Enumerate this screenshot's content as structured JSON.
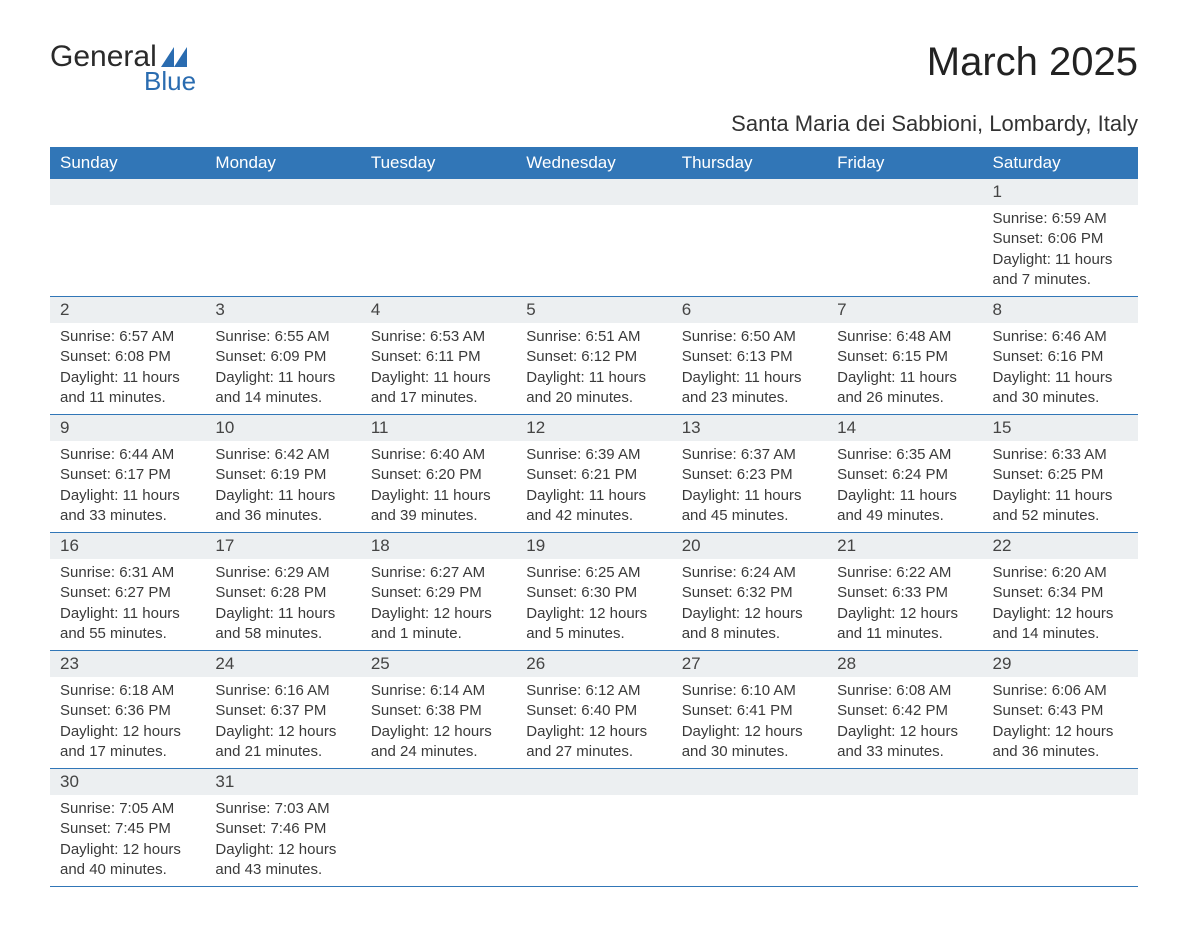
{
  "logo": {
    "word1": "General",
    "word2": "Blue",
    "text_color": "#2a2a2a",
    "accent_color": "#2a6cb0"
  },
  "title": "March 2025",
  "location": "Santa Maria dei Sabbioni, Lombardy, Italy",
  "colors": {
    "header_bg": "#3176b7",
    "header_text": "#ffffff",
    "daynum_bg": "#eceff1",
    "body_text": "#3a3a3a",
    "row_border": "#3176b7",
    "page_bg": "#ffffff"
  },
  "typography": {
    "title_fontsize": 40,
    "location_fontsize": 22,
    "header_fontsize": 17,
    "daynum_fontsize": 17,
    "body_fontsize": 15
  },
  "day_headers": [
    "Sunday",
    "Monday",
    "Tuesday",
    "Wednesday",
    "Thursday",
    "Friday",
    "Saturday"
  ],
  "weeks": [
    [
      {
        "empty": true
      },
      {
        "empty": true
      },
      {
        "empty": true
      },
      {
        "empty": true
      },
      {
        "empty": true
      },
      {
        "empty": true
      },
      {
        "day": "1",
        "sunrise": "Sunrise: 6:59 AM",
        "sunset": "Sunset: 6:06 PM",
        "daylight1": "Daylight: 11 hours",
        "daylight2": "and 7 minutes."
      }
    ],
    [
      {
        "day": "2",
        "sunrise": "Sunrise: 6:57 AM",
        "sunset": "Sunset: 6:08 PM",
        "daylight1": "Daylight: 11 hours",
        "daylight2": "and 11 minutes."
      },
      {
        "day": "3",
        "sunrise": "Sunrise: 6:55 AM",
        "sunset": "Sunset: 6:09 PM",
        "daylight1": "Daylight: 11 hours",
        "daylight2": "and 14 minutes."
      },
      {
        "day": "4",
        "sunrise": "Sunrise: 6:53 AM",
        "sunset": "Sunset: 6:11 PM",
        "daylight1": "Daylight: 11 hours",
        "daylight2": "and 17 minutes."
      },
      {
        "day": "5",
        "sunrise": "Sunrise: 6:51 AM",
        "sunset": "Sunset: 6:12 PM",
        "daylight1": "Daylight: 11 hours",
        "daylight2": "and 20 minutes."
      },
      {
        "day": "6",
        "sunrise": "Sunrise: 6:50 AM",
        "sunset": "Sunset: 6:13 PM",
        "daylight1": "Daylight: 11 hours",
        "daylight2": "and 23 minutes."
      },
      {
        "day": "7",
        "sunrise": "Sunrise: 6:48 AM",
        "sunset": "Sunset: 6:15 PM",
        "daylight1": "Daylight: 11 hours",
        "daylight2": "and 26 minutes."
      },
      {
        "day": "8",
        "sunrise": "Sunrise: 6:46 AM",
        "sunset": "Sunset: 6:16 PM",
        "daylight1": "Daylight: 11 hours",
        "daylight2": "and 30 minutes."
      }
    ],
    [
      {
        "day": "9",
        "sunrise": "Sunrise: 6:44 AM",
        "sunset": "Sunset: 6:17 PM",
        "daylight1": "Daylight: 11 hours",
        "daylight2": "and 33 minutes."
      },
      {
        "day": "10",
        "sunrise": "Sunrise: 6:42 AM",
        "sunset": "Sunset: 6:19 PM",
        "daylight1": "Daylight: 11 hours",
        "daylight2": "and 36 minutes."
      },
      {
        "day": "11",
        "sunrise": "Sunrise: 6:40 AM",
        "sunset": "Sunset: 6:20 PM",
        "daylight1": "Daylight: 11 hours",
        "daylight2": "and 39 minutes."
      },
      {
        "day": "12",
        "sunrise": "Sunrise: 6:39 AM",
        "sunset": "Sunset: 6:21 PM",
        "daylight1": "Daylight: 11 hours",
        "daylight2": "and 42 minutes."
      },
      {
        "day": "13",
        "sunrise": "Sunrise: 6:37 AM",
        "sunset": "Sunset: 6:23 PM",
        "daylight1": "Daylight: 11 hours",
        "daylight2": "and 45 minutes."
      },
      {
        "day": "14",
        "sunrise": "Sunrise: 6:35 AM",
        "sunset": "Sunset: 6:24 PM",
        "daylight1": "Daylight: 11 hours",
        "daylight2": "and 49 minutes."
      },
      {
        "day": "15",
        "sunrise": "Sunrise: 6:33 AM",
        "sunset": "Sunset: 6:25 PM",
        "daylight1": "Daylight: 11 hours",
        "daylight2": "and 52 minutes."
      }
    ],
    [
      {
        "day": "16",
        "sunrise": "Sunrise: 6:31 AM",
        "sunset": "Sunset: 6:27 PM",
        "daylight1": "Daylight: 11 hours",
        "daylight2": "and 55 minutes."
      },
      {
        "day": "17",
        "sunrise": "Sunrise: 6:29 AM",
        "sunset": "Sunset: 6:28 PM",
        "daylight1": "Daylight: 11 hours",
        "daylight2": "and 58 minutes."
      },
      {
        "day": "18",
        "sunrise": "Sunrise: 6:27 AM",
        "sunset": "Sunset: 6:29 PM",
        "daylight1": "Daylight: 12 hours",
        "daylight2": "and 1 minute."
      },
      {
        "day": "19",
        "sunrise": "Sunrise: 6:25 AM",
        "sunset": "Sunset: 6:30 PM",
        "daylight1": "Daylight: 12 hours",
        "daylight2": "and 5 minutes."
      },
      {
        "day": "20",
        "sunrise": "Sunrise: 6:24 AM",
        "sunset": "Sunset: 6:32 PM",
        "daylight1": "Daylight: 12 hours",
        "daylight2": "and 8 minutes."
      },
      {
        "day": "21",
        "sunrise": "Sunrise: 6:22 AM",
        "sunset": "Sunset: 6:33 PM",
        "daylight1": "Daylight: 12 hours",
        "daylight2": "and 11 minutes."
      },
      {
        "day": "22",
        "sunrise": "Sunrise: 6:20 AM",
        "sunset": "Sunset: 6:34 PM",
        "daylight1": "Daylight: 12 hours",
        "daylight2": "and 14 minutes."
      }
    ],
    [
      {
        "day": "23",
        "sunrise": "Sunrise: 6:18 AM",
        "sunset": "Sunset: 6:36 PM",
        "daylight1": "Daylight: 12 hours",
        "daylight2": "and 17 minutes."
      },
      {
        "day": "24",
        "sunrise": "Sunrise: 6:16 AM",
        "sunset": "Sunset: 6:37 PM",
        "daylight1": "Daylight: 12 hours",
        "daylight2": "and 21 minutes."
      },
      {
        "day": "25",
        "sunrise": "Sunrise: 6:14 AM",
        "sunset": "Sunset: 6:38 PM",
        "daylight1": "Daylight: 12 hours",
        "daylight2": "and 24 minutes."
      },
      {
        "day": "26",
        "sunrise": "Sunrise: 6:12 AM",
        "sunset": "Sunset: 6:40 PM",
        "daylight1": "Daylight: 12 hours",
        "daylight2": "and 27 minutes."
      },
      {
        "day": "27",
        "sunrise": "Sunrise: 6:10 AM",
        "sunset": "Sunset: 6:41 PM",
        "daylight1": "Daylight: 12 hours",
        "daylight2": "and 30 minutes."
      },
      {
        "day": "28",
        "sunrise": "Sunrise: 6:08 AM",
        "sunset": "Sunset: 6:42 PM",
        "daylight1": "Daylight: 12 hours",
        "daylight2": "and 33 minutes."
      },
      {
        "day": "29",
        "sunrise": "Sunrise: 6:06 AM",
        "sunset": "Sunset: 6:43 PM",
        "daylight1": "Daylight: 12 hours",
        "daylight2": "and 36 minutes."
      }
    ],
    [
      {
        "day": "30",
        "sunrise": "Sunrise: 7:05 AM",
        "sunset": "Sunset: 7:45 PM",
        "daylight1": "Daylight: 12 hours",
        "daylight2": "and 40 minutes."
      },
      {
        "day": "31",
        "sunrise": "Sunrise: 7:03 AM",
        "sunset": "Sunset: 7:46 PM",
        "daylight1": "Daylight: 12 hours",
        "daylight2": "and 43 minutes."
      },
      {
        "empty": true
      },
      {
        "empty": true
      },
      {
        "empty": true
      },
      {
        "empty": true
      },
      {
        "empty": true
      }
    ]
  ]
}
